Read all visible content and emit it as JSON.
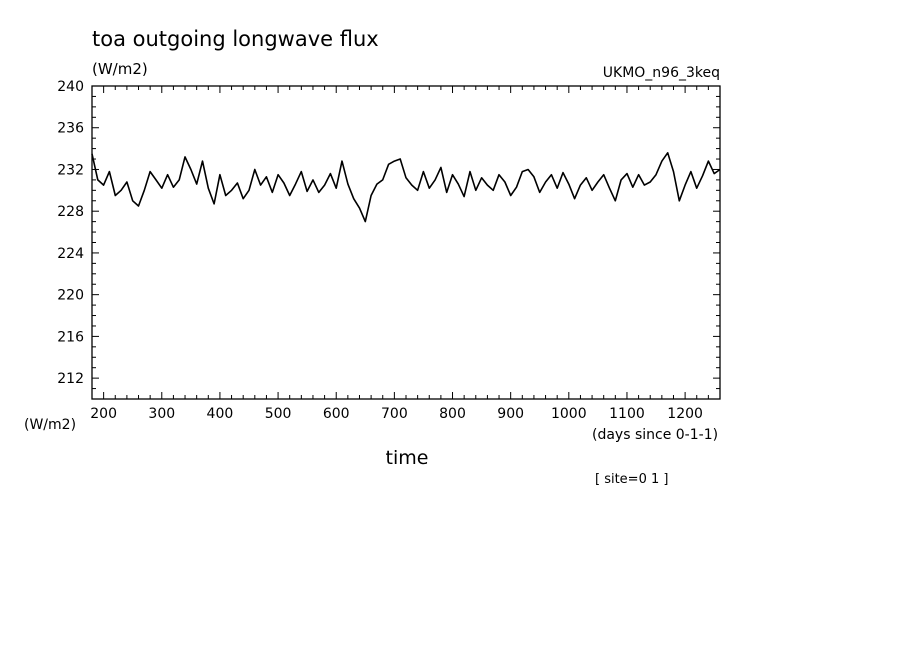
{
  "chart_data": {
    "type": "line",
    "title": "toa outgoing longwave flux",
    "subtitle": "(W/m2)",
    "dataset_label": "UKMO_n96_3keq",
    "ylabel": "(W/m2)",
    "xlabel": "time",
    "x_units_label": "(days since 0-1-1)",
    "annotation": "[ site=0 1 ]",
    "xlim": [
      180,
      1260
    ],
    "ylim": [
      210,
      240
    ],
    "x_ticks": [
      200,
      300,
      400,
      500,
      600,
      700,
      800,
      900,
      1000,
      1100,
      1200
    ],
    "y_ticks": [
      212,
      216,
      220,
      224,
      228,
      232,
      236,
      240
    ],
    "grid": false,
    "series": [
      {
        "x": [
          180,
          190,
          200,
          210,
          220,
          230,
          240,
          250,
          260,
          270,
          280,
          290,
          300,
          310,
          320,
          330,
          340,
          350,
          360,
          370,
          380,
          390,
          400,
          410,
          420,
          430,
          440,
          450,
          460,
          470,
          480,
          490,
          500,
          510,
          520,
          530,
          540,
          550,
          560,
          570,
          580,
          590,
          600,
          610,
          620,
          630,
          640,
          650,
          660,
          670,
          680,
          690,
          700,
          710,
          720,
          730,
          740,
          750,
          760,
          770,
          780,
          790,
          800,
          810,
          820,
          830,
          840,
          850,
          860,
          870,
          880,
          890,
          900,
          910,
          920,
          930,
          940,
          950,
          960,
          970,
          980,
          990,
          1000,
          1010,
          1020,
          1030,
          1040,
          1050,
          1060,
          1070,
          1080,
          1090,
          1100,
          1110,
          1120,
          1130,
          1140,
          1150,
          1160,
          1170,
          1180,
          1190,
          1200,
          1210,
          1220,
          1230,
          1240,
          1250,
          1260
        ],
        "values": [
          233.5,
          231.0,
          230.5,
          231.8,
          229.5,
          230.0,
          230.8,
          229.0,
          228.5,
          230.0,
          231.8,
          231.0,
          230.2,
          231.5,
          230.3,
          231.0,
          233.2,
          232.0,
          230.6,
          232.8,
          230.2,
          228.7,
          231.5,
          229.5,
          230.0,
          230.7,
          229.2,
          230.0,
          232.0,
          230.5,
          231.3,
          229.8,
          231.5,
          230.7,
          229.5,
          230.6,
          231.8,
          229.9,
          231.0,
          229.8,
          230.5,
          231.6,
          230.2,
          232.8,
          230.6,
          229.2,
          228.3,
          227.0,
          229.5,
          230.6,
          231.0,
          232.5,
          232.8,
          233.0,
          231.2,
          230.5,
          230.0,
          231.8,
          230.2,
          231.0,
          232.2,
          229.8,
          231.5,
          230.6,
          229.4,
          231.8,
          230.0,
          231.2,
          230.5,
          230.0,
          231.5,
          230.8,
          229.5,
          230.3,
          231.8,
          232.0,
          231.3,
          229.8,
          230.8,
          231.5,
          230.2,
          231.7,
          230.6,
          229.2,
          230.5,
          231.2,
          230.0,
          230.8,
          231.5,
          230.2,
          229.0,
          231.0,
          231.6,
          230.3,
          231.5,
          230.5,
          230.8,
          231.5,
          232.8,
          233.6,
          231.8,
          229.0,
          230.5,
          231.8,
          230.2,
          231.4,
          232.8,
          231.6,
          232.0
        ]
      }
    ]
  }
}
